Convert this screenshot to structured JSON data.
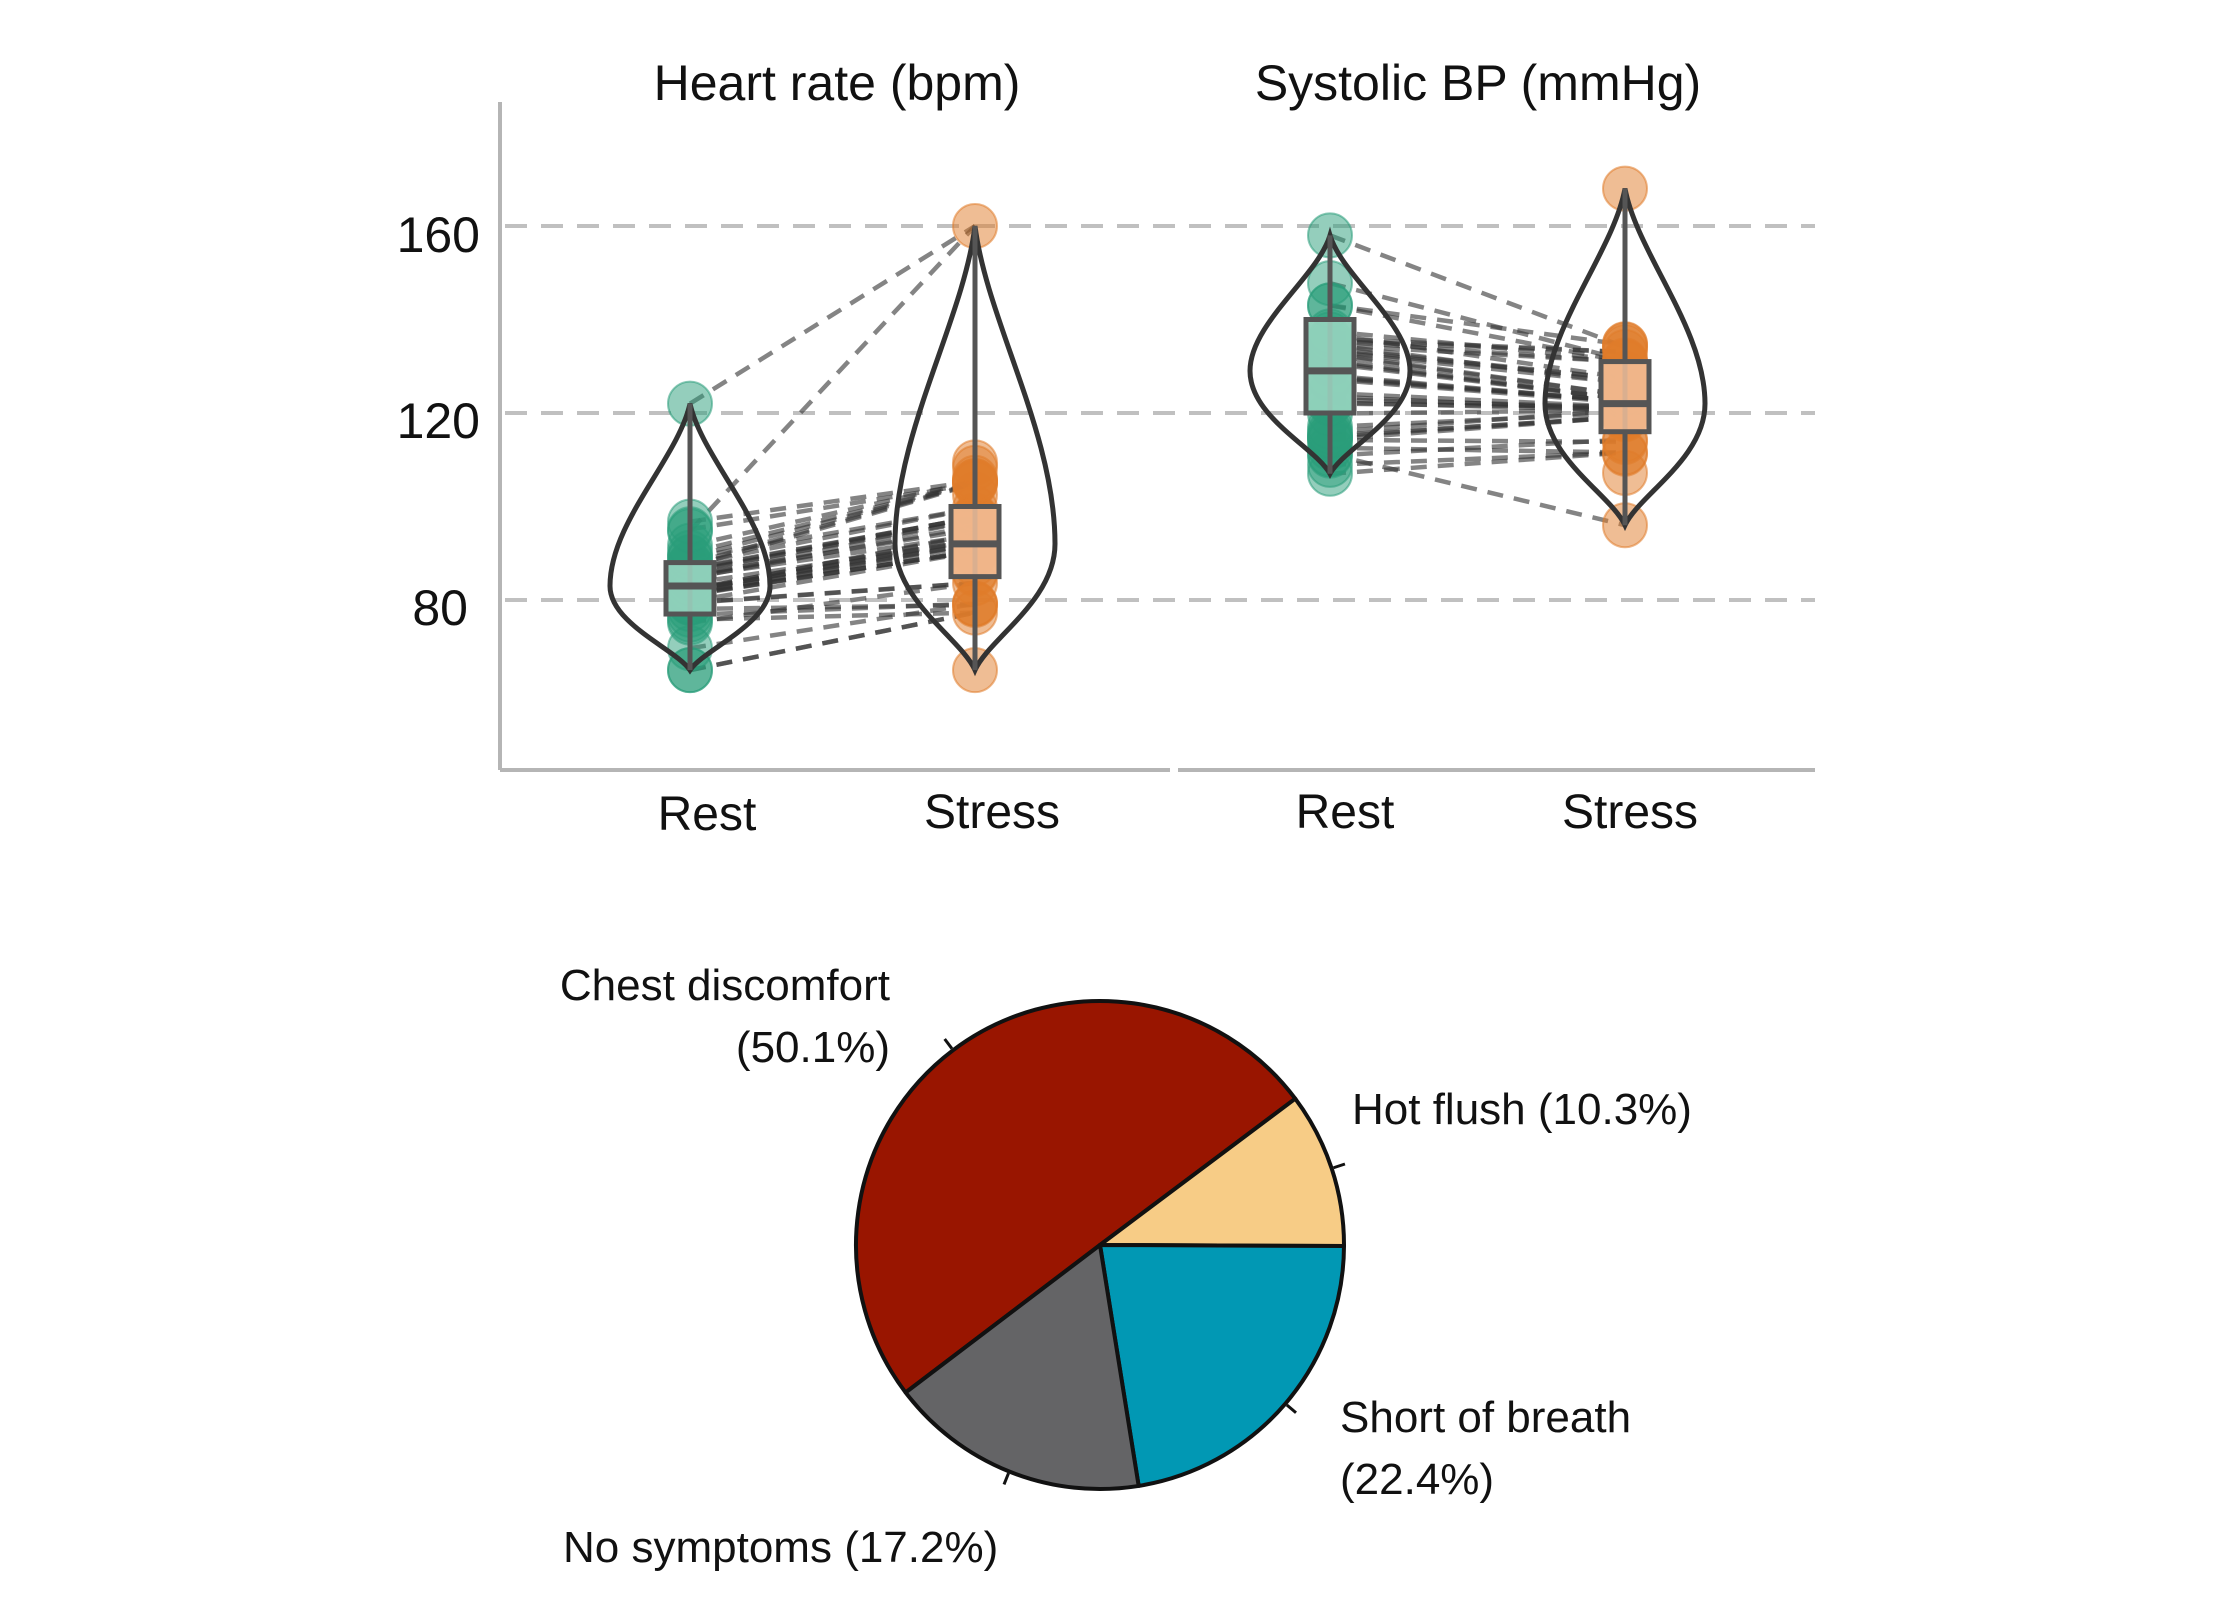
{
  "chart_data": [
    {
      "type": "violin-paired",
      "panels": [
        {
          "title": "Heart rate (bpm)",
          "categories": [
            "Rest",
            "Stress"
          ],
          "summary": {
            "Rest": {
              "min": 65,
              "q1": 77,
              "median": 83,
              "q3": 88,
              "max": 122
            },
            "Stress": {
              "min": 65,
              "q1": 85,
              "median": 92,
              "q3": 100,
              "max": 160
            }
          }
        },
        {
          "title": "Systolic BP (mmHg)",
          "categories": [
            "Rest",
            "Stress"
          ],
          "summary": {
            "Rest": {
              "min": 107,
              "q1": 120,
              "median": 129,
              "q3": 140,
              "max": 158
            },
            "Stress": {
              "min": 96,
              "q1": 116,
              "median": 122,
              "q3": 131,
              "max": 168
            }
          }
        }
      ],
      "y_ticks": [
        "80",
        "120",
        "160"
      ],
      "ylim": [
        45,
        185
      ],
      "grid": "horizontal dashed",
      "colors": {
        "rest": "#2a9d7a",
        "stress": "#e07b2a",
        "rest_box": "#9fd8c4",
        "stress_box": "#f2c09a",
        "grid": "#c0c0c0",
        "axis": "#b5b5b5"
      }
    },
    {
      "type": "pie",
      "slices": [
        {
          "label": "Chest discomfort",
          "pct_label": "(50.1%)",
          "value": 50.1,
          "color": "#991500"
        },
        {
          "label": "Hot flush",
          "pct_label": "(10.3%)",
          "value": 10.3,
          "color": "#f7cc86"
        },
        {
          "label": "Short of breath",
          "pct_label": "(22.4%)",
          "value": 22.4,
          "color": "#0198b4"
        },
        {
          "label": "No symptoms",
          "pct_label": "(17.2%)",
          "value": 17.2,
          "color": "#646466"
        }
      ]
    }
  ]
}
